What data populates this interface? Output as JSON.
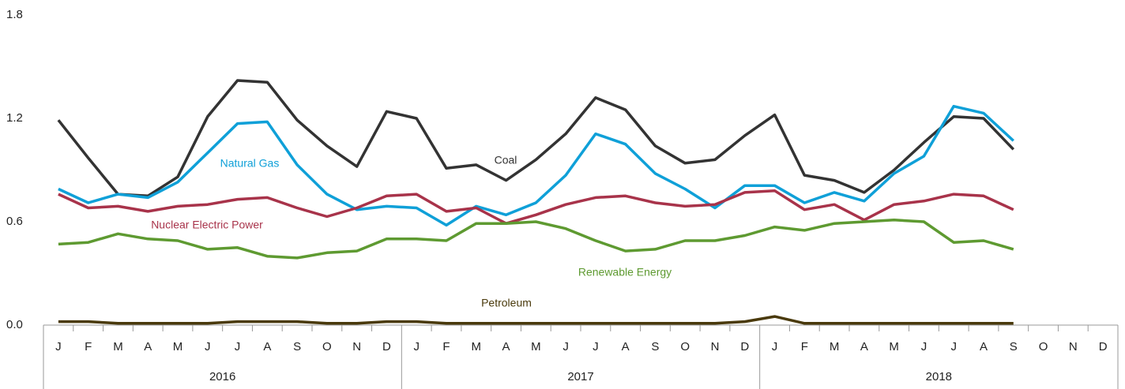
{
  "chart_data": {
    "type": "line",
    "categories": [
      "J",
      "F",
      "M",
      "A",
      "M",
      "J",
      "J",
      "A",
      "S",
      "O",
      "N",
      "D",
      "J",
      "F",
      "M",
      "A",
      "M",
      "J",
      "J",
      "A",
      "S",
      "O",
      "N",
      "D",
      "J",
      "F",
      "M",
      "A",
      "M",
      "J",
      "J",
      "A",
      "S",
      "O",
      "N",
      "D"
    ],
    "years": [
      "2016",
      "2017",
      "2018"
    ],
    "ylim": [
      0,
      1.8
    ],
    "yticks": [
      {
        "value": 0,
        "label": "0.0"
      },
      0.6,
      1.2,
      1.8
    ],
    "grid": false,
    "series": [
      {
        "name": "Coal",
        "color": "#333333",
        "values": [
          1.19,
          0.97,
          0.76,
          0.75,
          0.86,
          1.21,
          1.42,
          1.41,
          1.19,
          1.04,
          0.92,
          1.24,
          1.2,
          0.91,
          0.93,
          0.84,
          0.96,
          1.11,
          1.32,
          1.25,
          1.04,
          0.94,
          0.96,
          1.1,
          1.22,
          0.87,
          0.84,
          0.77,
          0.9,
          1.06,
          1.21,
          1.2,
          1.02,
          null,
          null,
          null
        ]
      },
      {
        "name": "Natural Gas",
        "color": "#0fa0d8",
        "values": [
          0.79,
          0.71,
          0.76,
          0.74,
          0.83,
          1.0,
          1.17,
          1.18,
          0.93,
          0.76,
          0.67,
          0.69,
          0.68,
          0.58,
          0.69,
          0.64,
          0.71,
          0.87,
          1.11,
          1.05,
          0.88,
          0.79,
          0.68,
          0.81,
          0.81,
          0.71,
          0.77,
          0.72,
          0.88,
          0.98,
          1.27,
          1.23,
          1.07,
          null,
          null,
          null
        ]
      },
      {
        "name": "Nuclear Electric Power",
        "color": "#a8334a",
        "values": [
          0.76,
          0.68,
          0.69,
          0.66,
          0.69,
          0.7,
          0.73,
          0.74,
          0.68,
          0.63,
          0.68,
          0.75,
          0.76,
          0.66,
          0.68,
          0.59,
          0.64,
          0.7,
          0.74,
          0.75,
          0.71,
          0.69,
          0.7,
          0.77,
          0.78,
          0.67,
          0.7,
          0.61,
          0.7,
          0.72,
          0.76,
          0.75,
          0.67,
          null,
          null,
          null
        ]
      },
      {
        "name": "Renewable Energy",
        "color": "#5e9a31",
        "values": [
          0.47,
          0.48,
          0.53,
          0.5,
          0.49,
          0.44,
          0.45,
          0.4,
          0.39,
          0.42,
          0.43,
          0.5,
          0.5,
          0.49,
          0.59,
          0.59,
          0.6,
          0.56,
          0.49,
          0.43,
          0.44,
          0.49,
          0.49,
          0.52,
          0.57,
          0.55,
          0.59,
          0.6,
          0.61,
          0.6,
          0.48,
          0.49,
          0.44,
          null,
          null,
          null
        ]
      },
      {
        "name": "Petroleum",
        "color": "#4a3a0c",
        "values": [
          0.02,
          0.02,
          0.01,
          0.01,
          0.01,
          0.01,
          0.02,
          0.02,
          0.02,
          0.01,
          0.01,
          0.02,
          0.02,
          0.01,
          0.01,
          0.01,
          0.01,
          0.01,
          0.01,
          0.01,
          0.01,
          0.01,
          0.01,
          0.02,
          0.05,
          0.01,
          0.01,
          0.01,
          0.01,
          0.01,
          0.01,
          0.01,
          0.01,
          null,
          null,
          null
        ]
      }
    ]
  }
}
